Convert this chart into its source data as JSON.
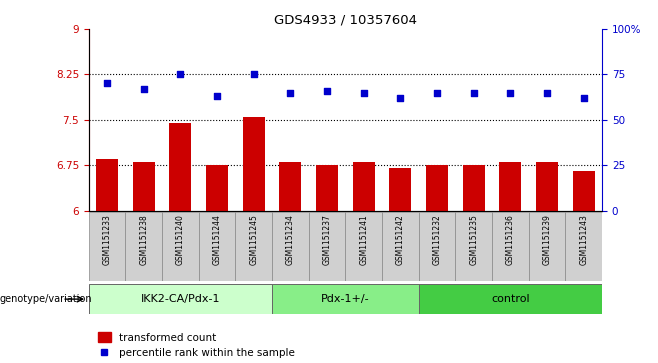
{
  "title": "GDS4933 / 10357604",
  "samples": [
    "GSM1151233",
    "GSM1151238",
    "GSM1151240",
    "GSM1151244",
    "GSM1151245",
    "GSM1151234",
    "GSM1151237",
    "GSM1151241",
    "GSM1151242",
    "GSM1151232",
    "GSM1151235",
    "GSM1151236",
    "GSM1151239",
    "GSM1151243"
  ],
  "bar_values": [
    6.85,
    6.8,
    7.45,
    6.75,
    7.55,
    6.8,
    6.75,
    6.8,
    6.7,
    6.75,
    6.75,
    6.8,
    6.8,
    6.65
  ],
  "dot_values": [
    70,
    67,
    75,
    63,
    75,
    65,
    66,
    65,
    62,
    65,
    65,
    65,
    65,
    62
  ],
  "bar_color": "#cc0000",
  "dot_color": "#0000cc",
  "ylim_left": [
    6,
    9
  ],
  "ylim_right": [
    0,
    100
  ],
  "yticks_left": [
    6,
    6.75,
    7.5,
    8.25,
    9
  ],
  "yticks_right": [
    0,
    25,
    50,
    75,
    100
  ],
  "ytick_labels_left": [
    "6",
    "6.75",
    "7.5",
    "8.25",
    "9"
  ],
  "ytick_labels_right": [
    "0",
    "25",
    "50",
    "75",
    "100%"
  ],
  "hlines": [
    6.75,
    7.5,
    8.25
  ],
  "groups": [
    {
      "label": "IKK2-CA/Pdx-1",
      "start": 0,
      "end": 5,
      "color": "#ccffcc"
    },
    {
      "label": "Pdx-1+/-",
      "start": 5,
      "end": 9,
      "color": "#88ee88"
    },
    {
      "label": "control",
      "start": 9,
      "end": 14,
      "color": "#44cc44"
    }
  ],
  "xticklabel_bg": "#d0d0d0",
  "legend_bar_label": "transformed count",
  "legend_dot_label": "percentile rank within the sample",
  "genotype_label": "genotype/variation"
}
